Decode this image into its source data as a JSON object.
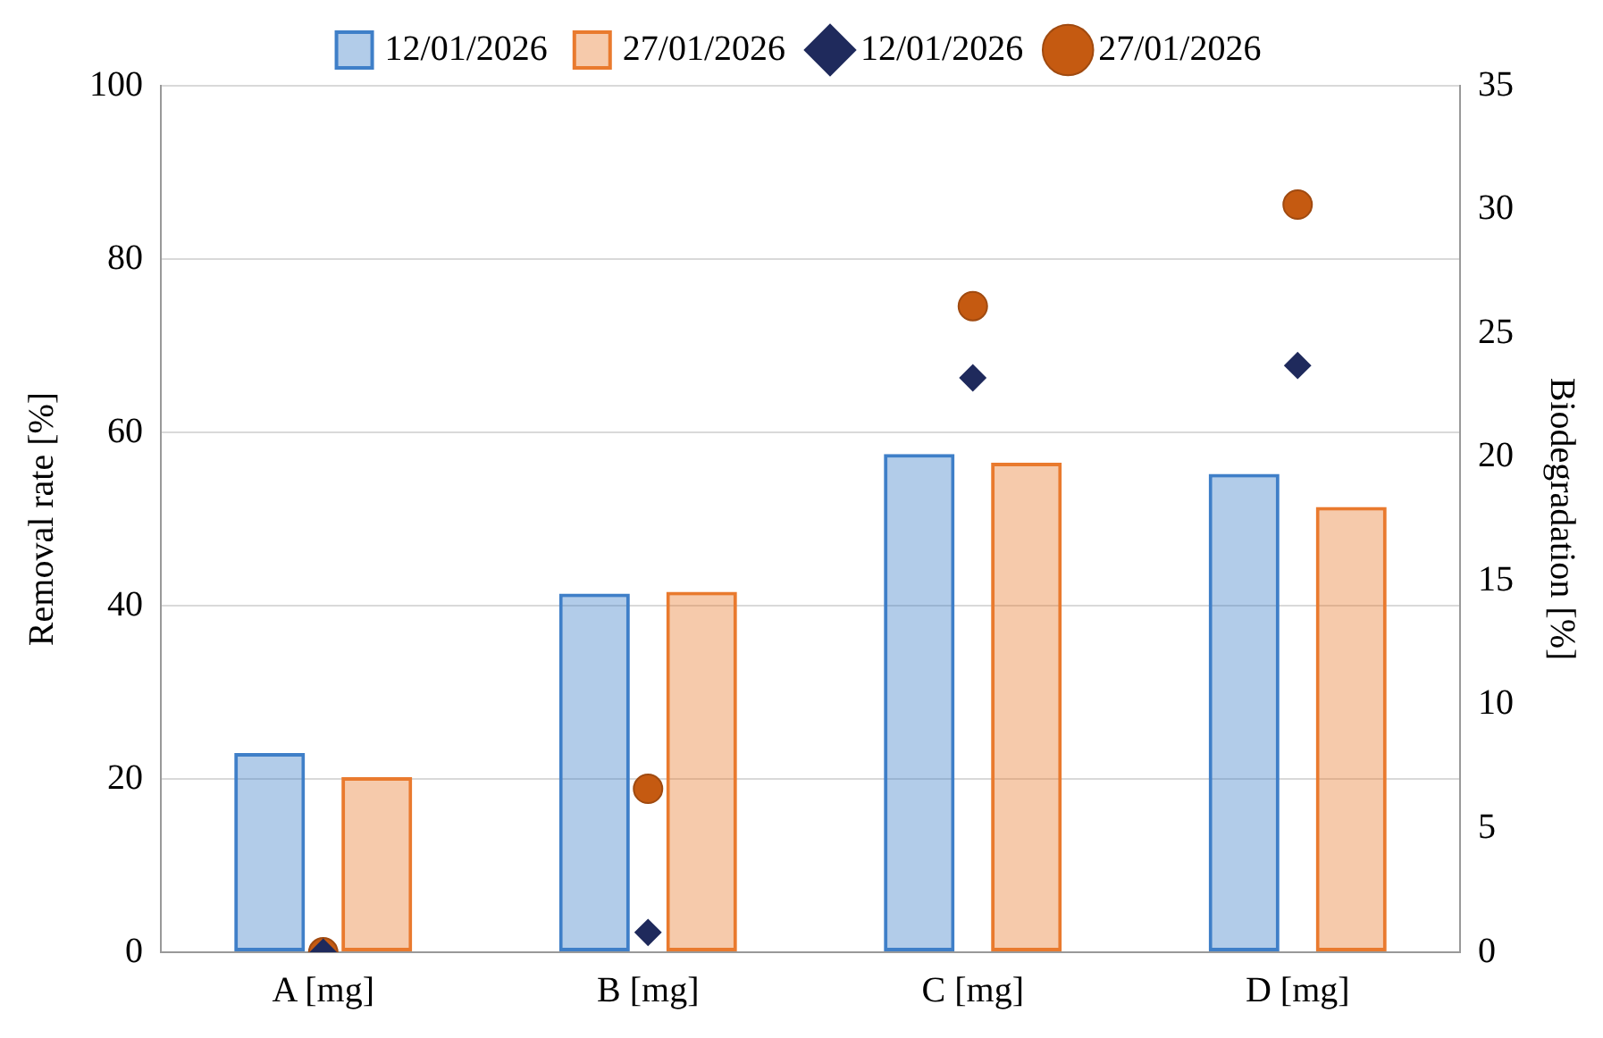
{
  "chart_data": {
    "type": "bar",
    "categories": [
      "A [mg]",
      "B [mg]",
      "C [mg]",
      "D [mg]"
    ],
    "ylabel": "Removal rate [%]",
    "y2label": "Biodegradation [%]",
    "ylim": [
      0,
      100
    ],
    "yticks": [
      0,
      20,
      40,
      60,
      80,
      100
    ],
    "y2lim": [
      0,
      35
    ],
    "y2ticks": [
      0,
      5,
      10,
      15,
      20,
      25,
      30,
      35
    ],
    "grid": "y",
    "legend": "top",
    "series": [
      {
        "name": "12/01/2026",
        "type": "bar",
        "color": "#3f7fc8",
        "values": [
          23,
          41.4,
          57.5,
          55.2
        ]
      },
      {
        "name": "27/01/2026",
        "type": "bar",
        "color": "#e97a2e",
        "values": [
          20.2,
          41.6,
          56.5,
          51.4
        ]
      },
      {
        "name": "12/01/2026",
        "type": "scatter",
        "axis": "y2",
        "marker": "diamond",
        "color": "#1f2a5c",
        "values": [
          0,
          0.8,
          23.2,
          23.7
        ]
      },
      {
        "name": "27/01/2026",
        "type": "scatter",
        "axis": "y2",
        "marker": "circle",
        "color": "#c55a11",
        "values": [
          0,
          6.6,
          26.1,
          30.2
        ]
      }
    ]
  }
}
